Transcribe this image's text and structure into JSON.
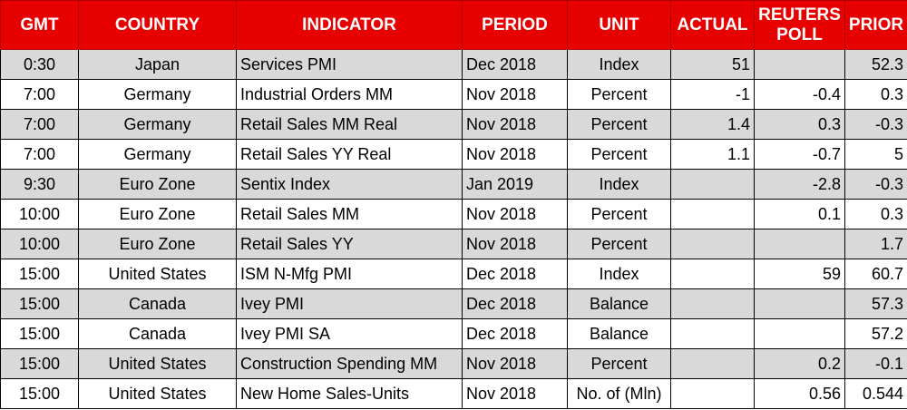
{
  "headers": {
    "gmt": "GMT",
    "country": "COUNTRY",
    "indicator": "INDICATOR",
    "period": "PERIOD",
    "unit": "UNIT",
    "actual": "ACTUAL",
    "poll_line1": "REUTERS",
    "poll_line2": "POLL",
    "prior": "PRIOR"
  },
  "colors": {
    "header_bg": "#e60000",
    "header_text": "#ffffff",
    "row_shaded": "#d9d9d9",
    "row_plain": "#ffffff"
  },
  "rows": [
    {
      "gmt": "0:30",
      "country": "Japan",
      "indicator": "Services PMI",
      "period": "Dec 2018",
      "unit": "Index",
      "actual": "51",
      "poll": "",
      "prior": "52.3"
    },
    {
      "gmt": "7:00",
      "country": "Germany",
      "indicator": "Industrial Orders MM",
      "period": "Nov 2018",
      "unit": "Percent",
      "actual": "-1",
      "poll": "-0.4",
      "prior": "0.3"
    },
    {
      "gmt": "7:00",
      "country": "Germany",
      "indicator": "Retail Sales MM Real",
      "period": "Nov 2018",
      "unit": "Percent",
      "actual": "1.4",
      "poll": "0.3",
      "prior": "-0.3"
    },
    {
      "gmt": "7:00",
      "country": "Germany",
      "indicator": "Retail Sales YY Real",
      "period": "Nov 2018",
      "unit": "Percent",
      "actual": "1.1",
      "poll": "-0.7",
      "prior": "5"
    },
    {
      "gmt": "9:30",
      "country": "Euro Zone",
      "indicator": "Sentix Index",
      "period": "Jan 2019",
      "unit": "Index",
      "actual": "",
      "poll": "-2.8",
      "prior": "-0.3"
    },
    {
      "gmt": "10:00",
      "country": "Euro Zone",
      "indicator": "Retail Sales MM",
      "period": "Nov 2018",
      "unit": "Percent",
      "actual": "",
      "poll": "0.1",
      "prior": "0.3"
    },
    {
      "gmt": "10:00",
      "country": "Euro Zone",
      "indicator": "Retail Sales YY",
      "period": "Nov 2018",
      "unit": "Percent",
      "actual": "",
      "poll": "",
      "prior": "1.7"
    },
    {
      "gmt": "15:00",
      "country": "United States",
      "indicator": "ISM N-Mfg PMI",
      "period": "Dec 2018",
      "unit": "Index",
      "actual": "",
      "poll": "59",
      "prior": "60.7"
    },
    {
      "gmt": "15:00",
      "country": "Canada",
      "indicator": "Ivey PMI",
      "period": "Dec 2018",
      "unit": "Balance",
      "actual": "",
      "poll": "",
      "prior": "57.3"
    },
    {
      "gmt": "15:00",
      "country": "Canada",
      "indicator": "Ivey PMI SA",
      "period": "Dec 2018",
      "unit": "Balance",
      "actual": "",
      "poll": "",
      "prior": "57.2"
    },
    {
      "gmt": "15:00",
      "country": "United States",
      "indicator": "Construction Spending MM",
      "period": "Nov 2018",
      "unit": "Percent",
      "actual": "",
      "poll": "0.2",
      "prior": "-0.1"
    },
    {
      "gmt": "15:00",
      "country": "United States",
      "indicator": "New Home Sales-Units",
      "period": "Nov 2018",
      "unit": "No. of (Mln)",
      "actual": "",
      "poll": "0.56",
      "prior": "0.544"
    }
  ]
}
